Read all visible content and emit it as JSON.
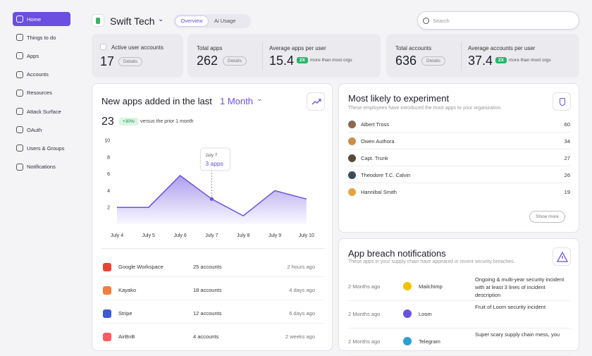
{
  "sidebar": {
    "items": [
      "Home",
      "Things to do",
      "Apps",
      "Accounts",
      "Resources",
      "Attack Surface",
      "OAuth",
      "Users & Groups",
      "Notifications"
    ]
  },
  "header": {
    "company": "Swift Tech",
    "tabs": [
      "Overview",
      "Ai Usage"
    ],
    "search": "Search"
  },
  "stats": [
    {
      "label": "Active user accounts",
      "value": 17,
      "button": "Details"
    },
    {
      "label": "Total apps",
      "value": 262,
      "button": "Details",
      "secondary": {
        "label": "Average apps per user",
        "value": 15.4,
        "badge": "2X",
        "note": "more than most orgs"
      }
    },
    {
      "label": "Total accounts",
      "value": 636,
      "button": "Details",
      "secondary": {
        "label": "Average accounts per user",
        "value": 37.4,
        "badge": "2X",
        "note": "more than most orgs"
      }
    }
  ],
  "new_apps": {
    "title": "New apps added in the last",
    "period": "1 Month",
    "total": 23,
    "change": "+30%",
    "comparison": "versus the prior 1 month",
    "chart": {
      "type": "area",
      "categories": [
        "July 4",
        "July 5",
        "July 6",
        "July 7",
        "July 8",
        "July 9",
        "July 10"
      ],
      "values": [
        2,
        2,
        5.8,
        3,
        1,
        4,
        3
      ],
      "ylim": [
        0,
        10
      ],
      "yticks": [
        2,
        4,
        6,
        8,
        10
      ],
      "color": "#6b4fe0",
      "tooltip": {
        "date": "July 7",
        "text": "3 apps"
      }
    },
    "apps": [
      {
        "name": "Google Workspace",
        "accounts": "25 accounts",
        "time": "2 hours ago"
      },
      {
        "name": "Kayako",
        "accounts": "18 accounts",
        "time": "4 days ago"
      },
      {
        "name": "Stripe",
        "accounts": "12 accounts",
        "time": "6 days ago"
      },
      {
        "name": "AirBnB",
        "accounts": "4 accounts",
        "time": "2 weeks ago"
      }
    ]
  },
  "experiment": {
    "title": "Most likely to experiment",
    "subtitle": "These employees have introduced the most apps to your organization.",
    "people": [
      {
        "name": "Albert Tross",
        "count": 60
      },
      {
        "name": "Owen Authora",
        "count": 34
      },
      {
        "name": "Capt. Trunk",
        "count": 27
      },
      {
        "name": "Theodore T.C. Calvin",
        "count": 26
      },
      {
        "name": "Hannibal Smith",
        "count": 19
      }
    ],
    "button": "Show more"
  },
  "breaches": {
    "title": "App breach notifications",
    "subtitle": "These apps in your supply chain have appeared in recent security breaches.",
    "items": [
      {
        "time": "2 Months ago",
        "app": "Mailchimp",
        "description": "Ongoing & multi-year security incident with at least 3 lines of incident description"
      },
      {
        "time": "2 Months ago",
        "app": "Loom",
        "description": "Fruit of Loom security incident"
      },
      {
        "time": "2 Months ago",
        "app": "Telegram",
        "description": "Super scary supply chain mess, you"
      }
    ]
  }
}
